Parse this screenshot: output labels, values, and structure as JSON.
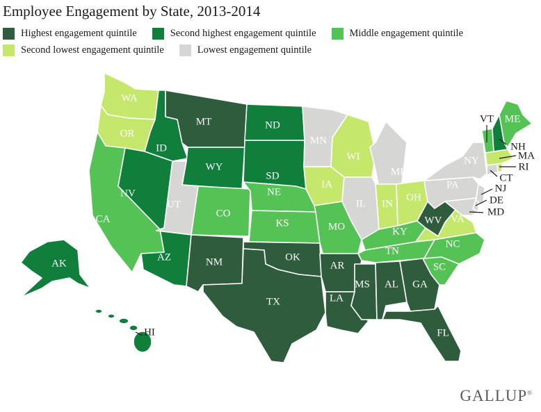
{
  "title": "Employee Engagement by State, 2013-2014",
  "colors": {
    "q1": "#2e5c3c",
    "q2": "#0f7f3b",
    "q3": "#55c255",
    "q4": "#c5e86c",
    "q5": "#d6d6d4"
  },
  "legend": [
    {
      "key": "q1",
      "label": "Highest engagement quintile"
    },
    {
      "key": "q2",
      "label": "Second highest engagement quintile"
    },
    {
      "key": "q3",
      "label": "Middle engagement quintile"
    },
    {
      "key": "q4",
      "label": "Second lowest engagement quintile"
    },
    {
      "key": "q5",
      "label": "Lowest engagement quintile"
    }
  ],
  "states": [
    {
      "abbr": "WA",
      "quintile": "q4"
    },
    {
      "abbr": "OR",
      "quintile": "q4"
    },
    {
      "abbr": "CA",
      "quintile": "q3"
    },
    {
      "abbr": "ID",
      "quintile": "q2"
    },
    {
      "abbr": "NV",
      "quintile": "q2"
    },
    {
      "abbr": "MT",
      "quintile": "q1"
    },
    {
      "abbr": "WY",
      "quintile": "q2"
    },
    {
      "abbr": "UT",
      "quintile": "q5"
    },
    {
      "abbr": "AZ",
      "quintile": "q2"
    },
    {
      "abbr": "CO",
      "quintile": "q3"
    },
    {
      "abbr": "NM",
      "quintile": "q1"
    },
    {
      "abbr": "ND",
      "quintile": "q2"
    },
    {
      "abbr": "SD",
      "quintile": "q2"
    },
    {
      "abbr": "NE",
      "quintile": "q3"
    },
    {
      "abbr": "KS",
      "quintile": "q3"
    },
    {
      "abbr": "OK",
      "quintile": "q1"
    },
    {
      "abbr": "TX",
      "quintile": "q1"
    },
    {
      "abbr": "MN",
      "quintile": "q5"
    },
    {
      "abbr": "IA",
      "quintile": "q4"
    },
    {
      "abbr": "MO",
      "quintile": "q3"
    },
    {
      "abbr": "AR",
      "quintile": "q1"
    },
    {
      "abbr": "LA",
      "quintile": "q1"
    },
    {
      "abbr": "WI",
      "quintile": "q4"
    },
    {
      "abbr": "IL",
      "quintile": "q5"
    },
    {
      "abbr": "MS",
      "quintile": "q1"
    },
    {
      "abbr": "MI",
      "quintile": "q5"
    },
    {
      "abbr": "IN",
      "quintile": "q4"
    },
    {
      "abbr": "KY",
      "quintile": "q3"
    },
    {
      "abbr": "TN",
      "quintile": "q3"
    },
    {
      "abbr": "AL",
      "quintile": "q1"
    },
    {
      "abbr": "GA",
      "quintile": "q1"
    },
    {
      "abbr": "FL",
      "quintile": "q1"
    },
    {
      "abbr": "OH",
      "quintile": "q4"
    },
    {
      "abbr": "WV",
      "quintile": "q1"
    },
    {
      "abbr": "VA",
      "quintile": "q4"
    },
    {
      "abbr": "NC",
      "quintile": "q3"
    },
    {
      "abbr": "SC",
      "quintile": "q3"
    },
    {
      "abbr": "PA",
      "quintile": "q5"
    },
    {
      "abbr": "NY",
      "quintile": "q5"
    },
    {
      "abbr": "VT",
      "quintile": "q3"
    },
    {
      "abbr": "NH",
      "quintile": "q2"
    },
    {
      "abbr": "ME",
      "quintile": "q3"
    },
    {
      "abbr": "MA",
      "quintile": "q4"
    },
    {
      "abbr": "RI",
      "quintile": "q4"
    },
    {
      "abbr": "CT",
      "quintile": "q5"
    },
    {
      "abbr": "NJ",
      "quintile": "q5"
    },
    {
      "abbr": "DE",
      "quintile": "q5"
    },
    {
      "abbr": "MD",
      "quintile": "q5"
    },
    {
      "abbr": "AK",
      "quintile": "q2"
    },
    {
      "abbr": "HI",
      "quintile": "q2"
    }
  ],
  "source_logo": "GALLUP",
  "logo_mark": "®"
}
